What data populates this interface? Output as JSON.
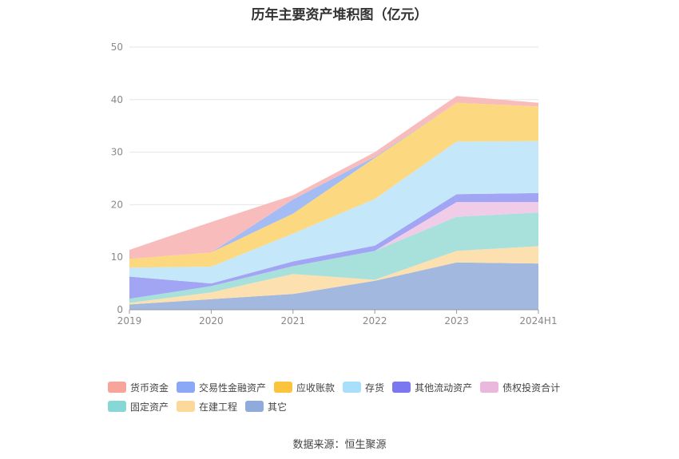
{
  "chart_data": {
    "type": "area",
    "stacked": true,
    "title": "历年主要资产堆积图（亿元）",
    "categories": [
      "2019",
      "2020",
      "2021",
      "2022",
      "2023",
      "2024H1"
    ],
    "ylim": [
      0,
      50
    ],
    "yticks": [
      0,
      10,
      20,
      30,
      40,
      50
    ],
    "grid": true,
    "legend_position": "bottom",
    "series": [
      {
        "name": "其它",
        "color": "#a3b8de",
        "values": [
          1.0,
          2.0,
          3.0,
          5.5,
          9.0,
          8.8
        ]
      },
      {
        "name": "在建工程",
        "color": "#fde0b0",
        "values": [
          0.3,
          1.3,
          3.8,
          0.2,
          2.2,
          3.3
        ]
      },
      {
        "name": "固定资产",
        "color": "#a8e0dc",
        "values": [
          0.8,
          1.2,
          1.5,
          5.5,
          6.5,
          6.4
        ]
      },
      {
        "name": "债权投资合计",
        "color": "#f0cce8",
        "values": [
          0.0,
          0.0,
          0.0,
          0.0,
          2.8,
          2.0
        ]
      },
      {
        "name": "其他流动资产",
        "color": "#a2a4f4",
        "values": [
          4.2,
          0.5,
          0.9,
          1.0,
          1.5,
          1.7
        ]
      },
      {
        "name": "存货",
        "color": "#c4e8fa",
        "values": [
          1.7,
          3.2,
          5.3,
          8.9,
          10.0,
          9.9
        ]
      },
      {
        "name": "应收账款",
        "color": "#fcd880",
        "values": [
          1.7,
          2.7,
          3.8,
          7.8,
          7.4,
          6.6
        ]
      },
      {
        "name": "交易性金融资产",
        "color": "#a4bcf4",
        "values": [
          0.0,
          0.0,
          2.7,
          0.2,
          0.0,
          0.0
        ]
      },
      {
        "name": "货币资金",
        "color": "#f9bcbc",
        "values": [
          1.7,
          5.8,
          0.8,
          0.9,
          1.3,
          0.7
        ]
      }
    ]
  },
  "legend": {
    "items": [
      {
        "label": "货币资金",
        "color": "#f7a59a"
      },
      {
        "label": "交易性金融资产",
        "color": "#8aa8f5"
      },
      {
        "label": "应收账款",
        "color": "#fcc33c"
      },
      {
        "label": "存货",
        "color": "#a9dffb"
      },
      {
        "label": "其他流动资产",
        "color": "#7b77ef"
      },
      {
        "label": "债权投资合计",
        "color": "#eab7dd"
      },
      {
        "label": "固定资产",
        "color": "#86d7d5"
      },
      {
        "label": "在建工程",
        "color": "#fdd89b"
      },
      {
        "label": "其它",
        "color": "#8fabdb"
      }
    ]
  },
  "source_note": "数据来源：恒生聚源"
}
